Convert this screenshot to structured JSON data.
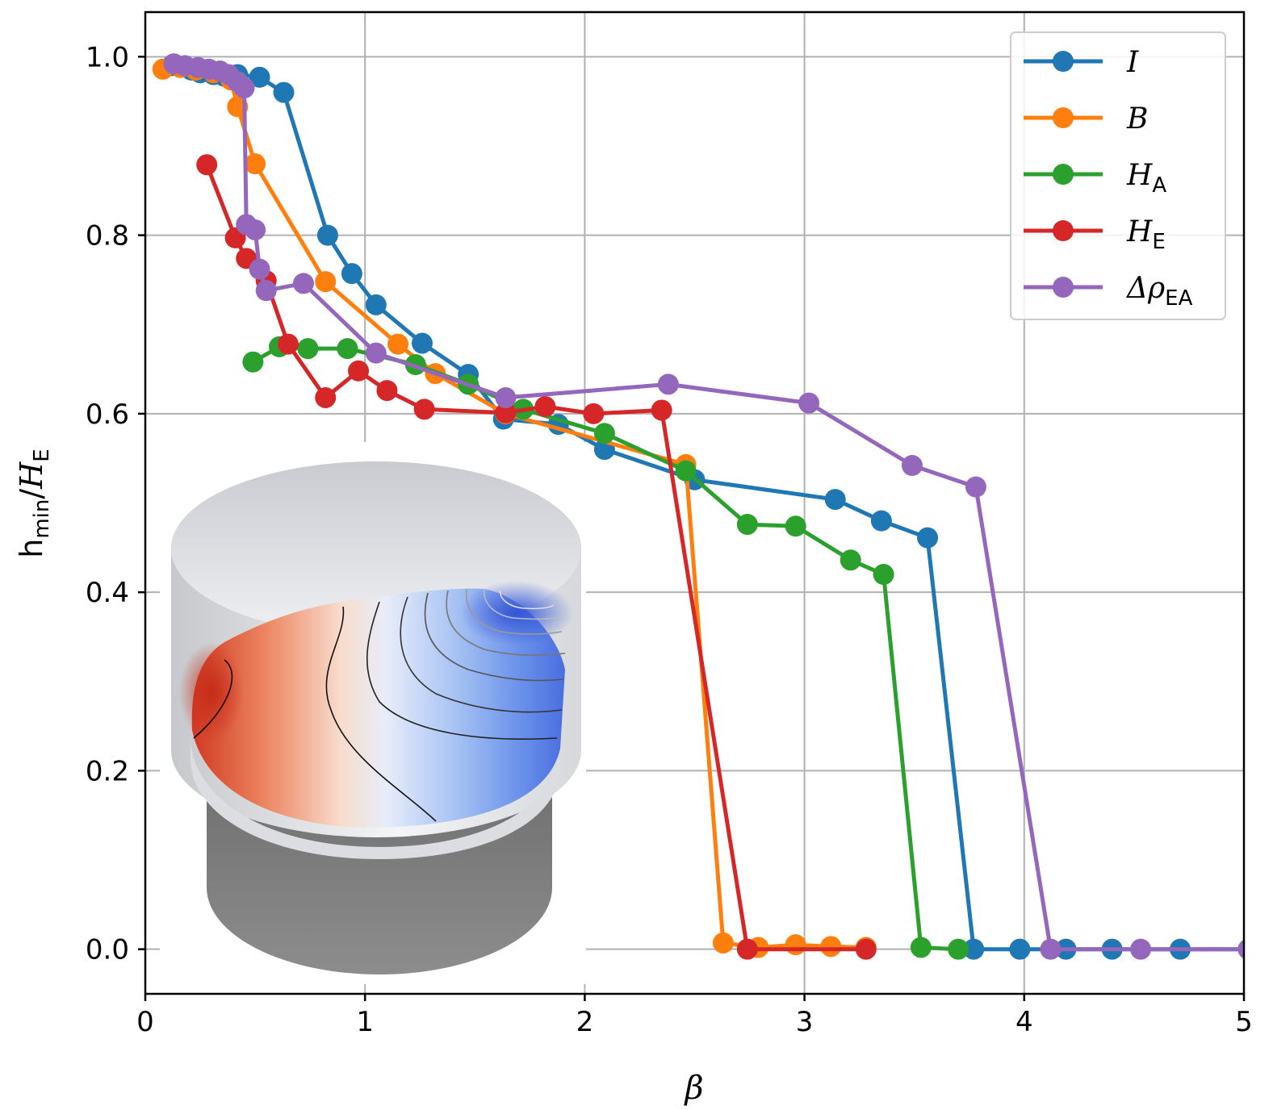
{
  "chart_data": {
    "type": "line",
    "title": "",
    "xlabel": "β",
    "ylabel": {
      "main": "h",
      "main_sub": "min",
      "sep": "/",
      "var": "H",
      "var_sub": "E"
    },
    "xlim": [
      0,
      5
    ],
    "ylim": [
      -0.05,
      1.05
    ],
    "xticks": [
      0,
      1,
      2,
      3,
      4,
      5
    ],
    "yticks": [
      0.0,
      0.2,
      0.4,
      0.6,
      0.8,
      1.0
    ],
    "xtick_labels": [
      "0",
      "1",
      "2",
      "3",
      "4",
      "5"
    ],
    "ytick_labels": [
      "0.0",
      "0.2",
      "0.4",
      "0.6",
      "0.8",
      "1.0"
    ],
    "grid": true,
    "legend_position": "top-right",
    "series": [
      {
        "name": "I",
        "name_sub": "",
        "color": "#1f77b4",
        "x": [
          0.12,
          0.16,
          0.21,
          0.25,
          0.31,
          0.36,
          0.42,
          0.52,
          0.63,
          0.83,
          0.94,
          1.05,
          1.26,
          1.47,
          1.63,
          1.88,
          2.09,
          2.5,
          3.14,
          3.35,
          3.56,
          3.77,
          3.98,
          4.19,
          4.4,
          4.71,
          5.02
        ],
        "y": [
          0.99,
          0.988,
          0.985,
          0.982,
          0.98,
          0.978,
          0.98,
          0.977,
          0.96,
          0.8,
          0.757,
          0.722,
          0.679,
          0.644,
          0.594,
          0.588,
          0.56,
          0.526,
          0.504,
          0.48,
          0.461,
          0.0,
          0.0,
          0.0,
          0.0,
          0.0,
          0.0
        ]
      },
      {
        "name": "B",
        "name_sub": "",
        "color": "#ff7f0e",
        "x": [
          0.08,
          0.16,
          0.23,
          0.31,
          0.39,
          0.42,
          0.5,
          0.82,
          1.15,
          1.32,
          1.64,
          2.46,
          2.63,
          2.79,
          2.96,
          3.12,
          3.28
        ],
        "y": [
          0.986,
          0.988,
          0.985,
          0.982,
          0.974,
          0.944,
          0.88,
          0.748,
          0.678,
          0.645,
          0.6,
          0.543,
          0.007,
          0.002,
          0.005,
          0.003,
          0.002
        ]
      },
      {
        "name": "H",
        "name_sub": "A",
        "color": "#2ca02c",
        "x": [
          0.49,
          0.61,
          0.74,
          0.92,
          1.23,
          1.47,
          1.72,
          2.09,
          2.46,
          2.74,
          2.96,
          3.21,
          3.36,
          3.53,
          3.7
        ],
        "y": [
          0.658,
          0.675,
          0.673,
          0.673,
          0.655,
          0.633,
          0.605,
          0.578,
          0.536,
          0.476,
          0.474,
          0.436,
          0.42,
          0.002,
          0.0
        ]
      },
      {
        "name": "H",
        "name_sub": "E",
        "color": "#d62728",
        "x": [
          0.28,
          0.41,
          0.46,
          0.55,
          0.65,
          0.82,
          0.97,
          1.1,
          1.27,
          1.64,
          1.82,
          2.04,
          2.35,
          2.74,
          3.28
        ],
        "y": [
          0.879,
          0.797,
          0.774,
          0.749,
          0.678,
          0.618,
          0.648,
          0.626,
          0.605,
          0.601,
          0.608,
          0.6,
          0.604,
          0.0,
          0.0
        ]
      },
      {
        "name": "Δρ",
        "name_sub": "EA",
        "color": "#9467bd",
        "x": [
          0.13,
          0.18,
          0.24,
          0.29,
          0.34,
          0.38,
          0.42,
          0.45,
          0.46,
          0.5,
          0.52,
          0.55,
          0.72,
          1.05,
          1.64,
          2.38,
          3.02,
          3.49,
          3.78,
          4.12,
          4.53,
          5.02
        ],
        "y": [
          0.992,
          0.99,
          0.988,
          0.986,
          0.984,
          0.98,
          0.972,
          0.965,
          0.812,
          0.806,
          0.762,
          0.738,
          0.746,
          0.668,
          0.618,
          0.633,
          0.612,
          0.542,
          0.518,
          0.0,
          0.0,
          0.0
        ]
      }
    ]
  },
  "inset": {
    "icon": "cylinder-render-icon",
    "surface_colormap": "blue-white-red"
  }
}
